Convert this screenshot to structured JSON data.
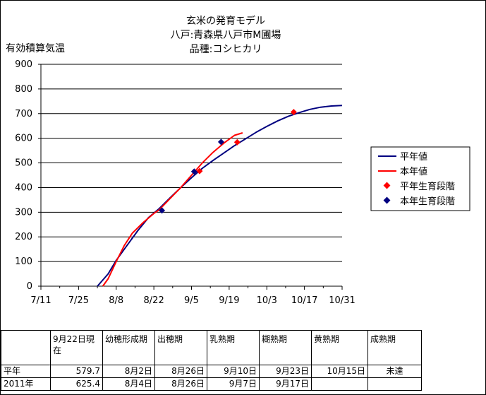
{
  "chart_data": {
    "type": "line",
    "title_lines": [
      "玄米の発育モデル",
      "八戸:青森県八戸市M圃場",
      "品種:コシヒカリ"
    ],
    "ylabel": "有効積算気温",
    "ylim": [
      0,
      900
    ],
    "yticks": [
      0,
      100,
      200,
      300,
      400,
      500,
      600,
      700,
      800,
      900
    ],
    "xlim": [
      0,
      112
    ],
    "xticks": [
      {
        "x": 0,
        "label": "7/11"
      },
      {
        "x": 14,
        "label": "7/25"
      },
      {
        "x": 28,
        "label": "8/8"
      },
      {
        "x": 42,
        "label": "8/22"
      },
      {
        "x": 56,
        "label": "9/5"
      },
      {
        "x": 70,
        "label": "9/19"
      },
      {
        "x": 84,
        "label": "10/3"
      },
      {
        "x": 98,
        "label": "10/17"
      },
      {
        "x": 112,
        "label": "10/31"
      }
    ],
    "grid": true,
    "legend_position": "right",
    "series": [
      {
        "name": "平年値",
        "kind": "line",
        "color": "#000080",
        "points": [
          [
            21,
            0
          ],
          [
            25,
            50
          ],
          [
            28,
            105
          ],
          [
            32,
            165
          ],
          [
            36,
            225
          ],
          [
            40,
            278
          ],
          [
            44,
            315
          ],
          [
            48,
            358
          ],
          [
            52,
            400
          ],
          [
            56,
            440
          ],
          [
            60,
            478
          ],
          [
            64,
            510
          ],
          [
            68,
            540
          ],
          [
            72,
            570
          ],
          [
            76,
            597
          ],
          [
            80,
            624
          ],
          [
            84,
            648
          ],
          [
            88,
            670
          ],
          [
            92,
            689
          ],
          [
            96,
            704
          ],
          [
            100,
            717
          ],
          [
            104,
            726
          ],
          [
            108,
            731
          ],
          [
            112,
            733
          ]
        ]
      },
      {
        "name": "本年値",
        "kind": "line",
        "color": "#FF0000",
        "points": [
          [
            23,
            0
          ],
          [
            25,
            30
          ],
          [
            28,
            100
          ],
          [
            31,
            165
          ],
          [
            34,
            215
          ],
          [
            38,
            258
          ],
          [
            42,
            295
          ],
          [
            44,
            310
          ],
          [
            48,
            355
          ],
          [
            52,
            400
          ],
          [
            56,
            450
          ],
          [
            60,
            500
          ],
          [
            64,
            543
          ],
          [
            68,
            580
          ],
          [
            72,
            612
          ],
          [
            75,
            622
          ]
        ]
      },
      {
        "name": "平年生育段階",
        "kind": "scatter",
        "color": "#FF0000",
        "points": [
          [
            59,
            467
          ],
          [
            73,
            584
          ],
          [
            94,
            706
          ]
        ]
      },
      {
        "name": "本年生育段階",
        "kind": "scatter",
        "color": "#000080",
        "points": [
          [
            45,
            307
          ],
          [
            57,
            465
          ],
          [
            67,
            585
          ]
        ]
      }
    ]
  },
  "table": {
    "headers": [
      "",
      "9月22日現在",
      "幼穂形成期",
      "出穂期",
      "乳熟期",
      "糊熟期",
      "黄熟期",
      "成熟期"
    ],
    "rows": [
      [
        "平年",
        "579.7",
        "8月2日",
        "8月26日",
        "9月10日",
        "9月23日",
        "10月15日",
        "未達"
      ],
      [
        "2011年",
        "625.4",
        "8月4日",
        "8月26日",
        "9月7日",
        "9月17日",
        "",
        ""
      ]
    ]
  }
}
